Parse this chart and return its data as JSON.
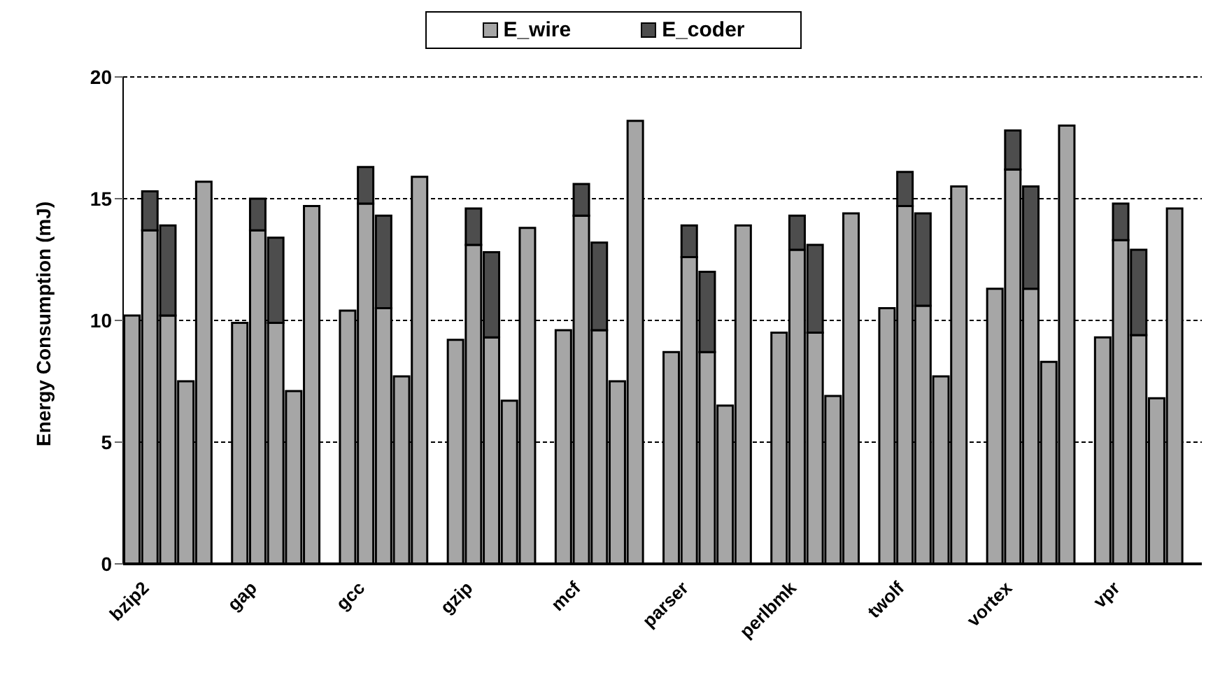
{
  "chart_data": {
    "type": "bar",
    "stacked": true,
    "ylabel": "Energy Consumption (mJ)",
    "categories": [
      null,
      "bzip2",
      null,
      null,
      null,
      null,
      null,
      "gap",
      null,
      null,
      null,
      null,
      null,
      "gcc",
      null,
      null,
      null,
      null,
      null,
      "gzip",
      null,
      null,
      null,
      null,
      null,
      "mcf",
      null,
      null,
      null,
      null,
      null,
      "parser",
      null,
      null,
      null,
      null,
      null,
      "perlbmk",
      null,
      null,
      null,
      null,
      null,
      "twolf",
      null,
      null,
      null,
      null,
      null,
      "vortex",
      null,
      null,
      null,
      null,
      null,
      "vpr",
      null,
      null,
      null,
      null
    ],
    "series": [
      {
        "name": "E_wire",
        "color": "#a6a6a6",
        "values": [
          10.2,
          13.7,
          10.2,
          7.5,
          15.7,
          null,
          9.9,
          13.7,
          9.9,
          7.1,
          14.7,
          null,
          10.4,
          14.8,
          10.5,
          7.7,
          15.9,
          null,
          9.2,
          13.1,
          9.3,
          6.7,
          13.8,
          null,
          9.6,
          14.3,
          9.6,
          7.5,
          18.2,
          null,
          8.7,
          12.6,
          8.7,
          6.5,
          13.9,
          null,
          9.5,
          12.9,
          9.5,
          6.9,
          14.4,
          null,
          10.5,
          14.7,
          10.6,
          7.7,
          15.5,
          null,
          11.3,
          16.2,
          11.3,
          8.3,
          18.0,
          null,
          9.3,
          13.3,
          9.4,
          6.8,
          14.6,
          null
        ]
      },
      {
        "name": "E_coder",
        "color": "#4d4d4d",
        "values": [
          null,
          1.6,
          3.7,
          null,
          null,
          null,
          null,
          1.3,
          3.5,
          null,
          null,
          null,
          null,
          1.5,
          3.8,
          null,
          null,
          null,
          null,
          1.5,
          3.5,
          null,
          null,
          null,
          null,
          1.3,
          3.6,
          null,
          null,
          null,
          null,
          1.3,
          3.3,
          null,
          null,
          null,
          null,
          1.4,
          3.6,
          null,
          null,
          null,
          null,
          1.4,
          3.8,
          null,
          null,
          null,
          null,
          1.6,
          4.2,
          null,
          null,
          null,
          null,
          1.5,
          3.5,
          null,
          null,
          null
        ]
      }
    ],
    "ylim": [
      0,
      20
    ],
    "yticks": [
      0,
      5,
      10,
      15,
      20
    ],
    "grid": "y",
    "legend": "top"
  }
}
